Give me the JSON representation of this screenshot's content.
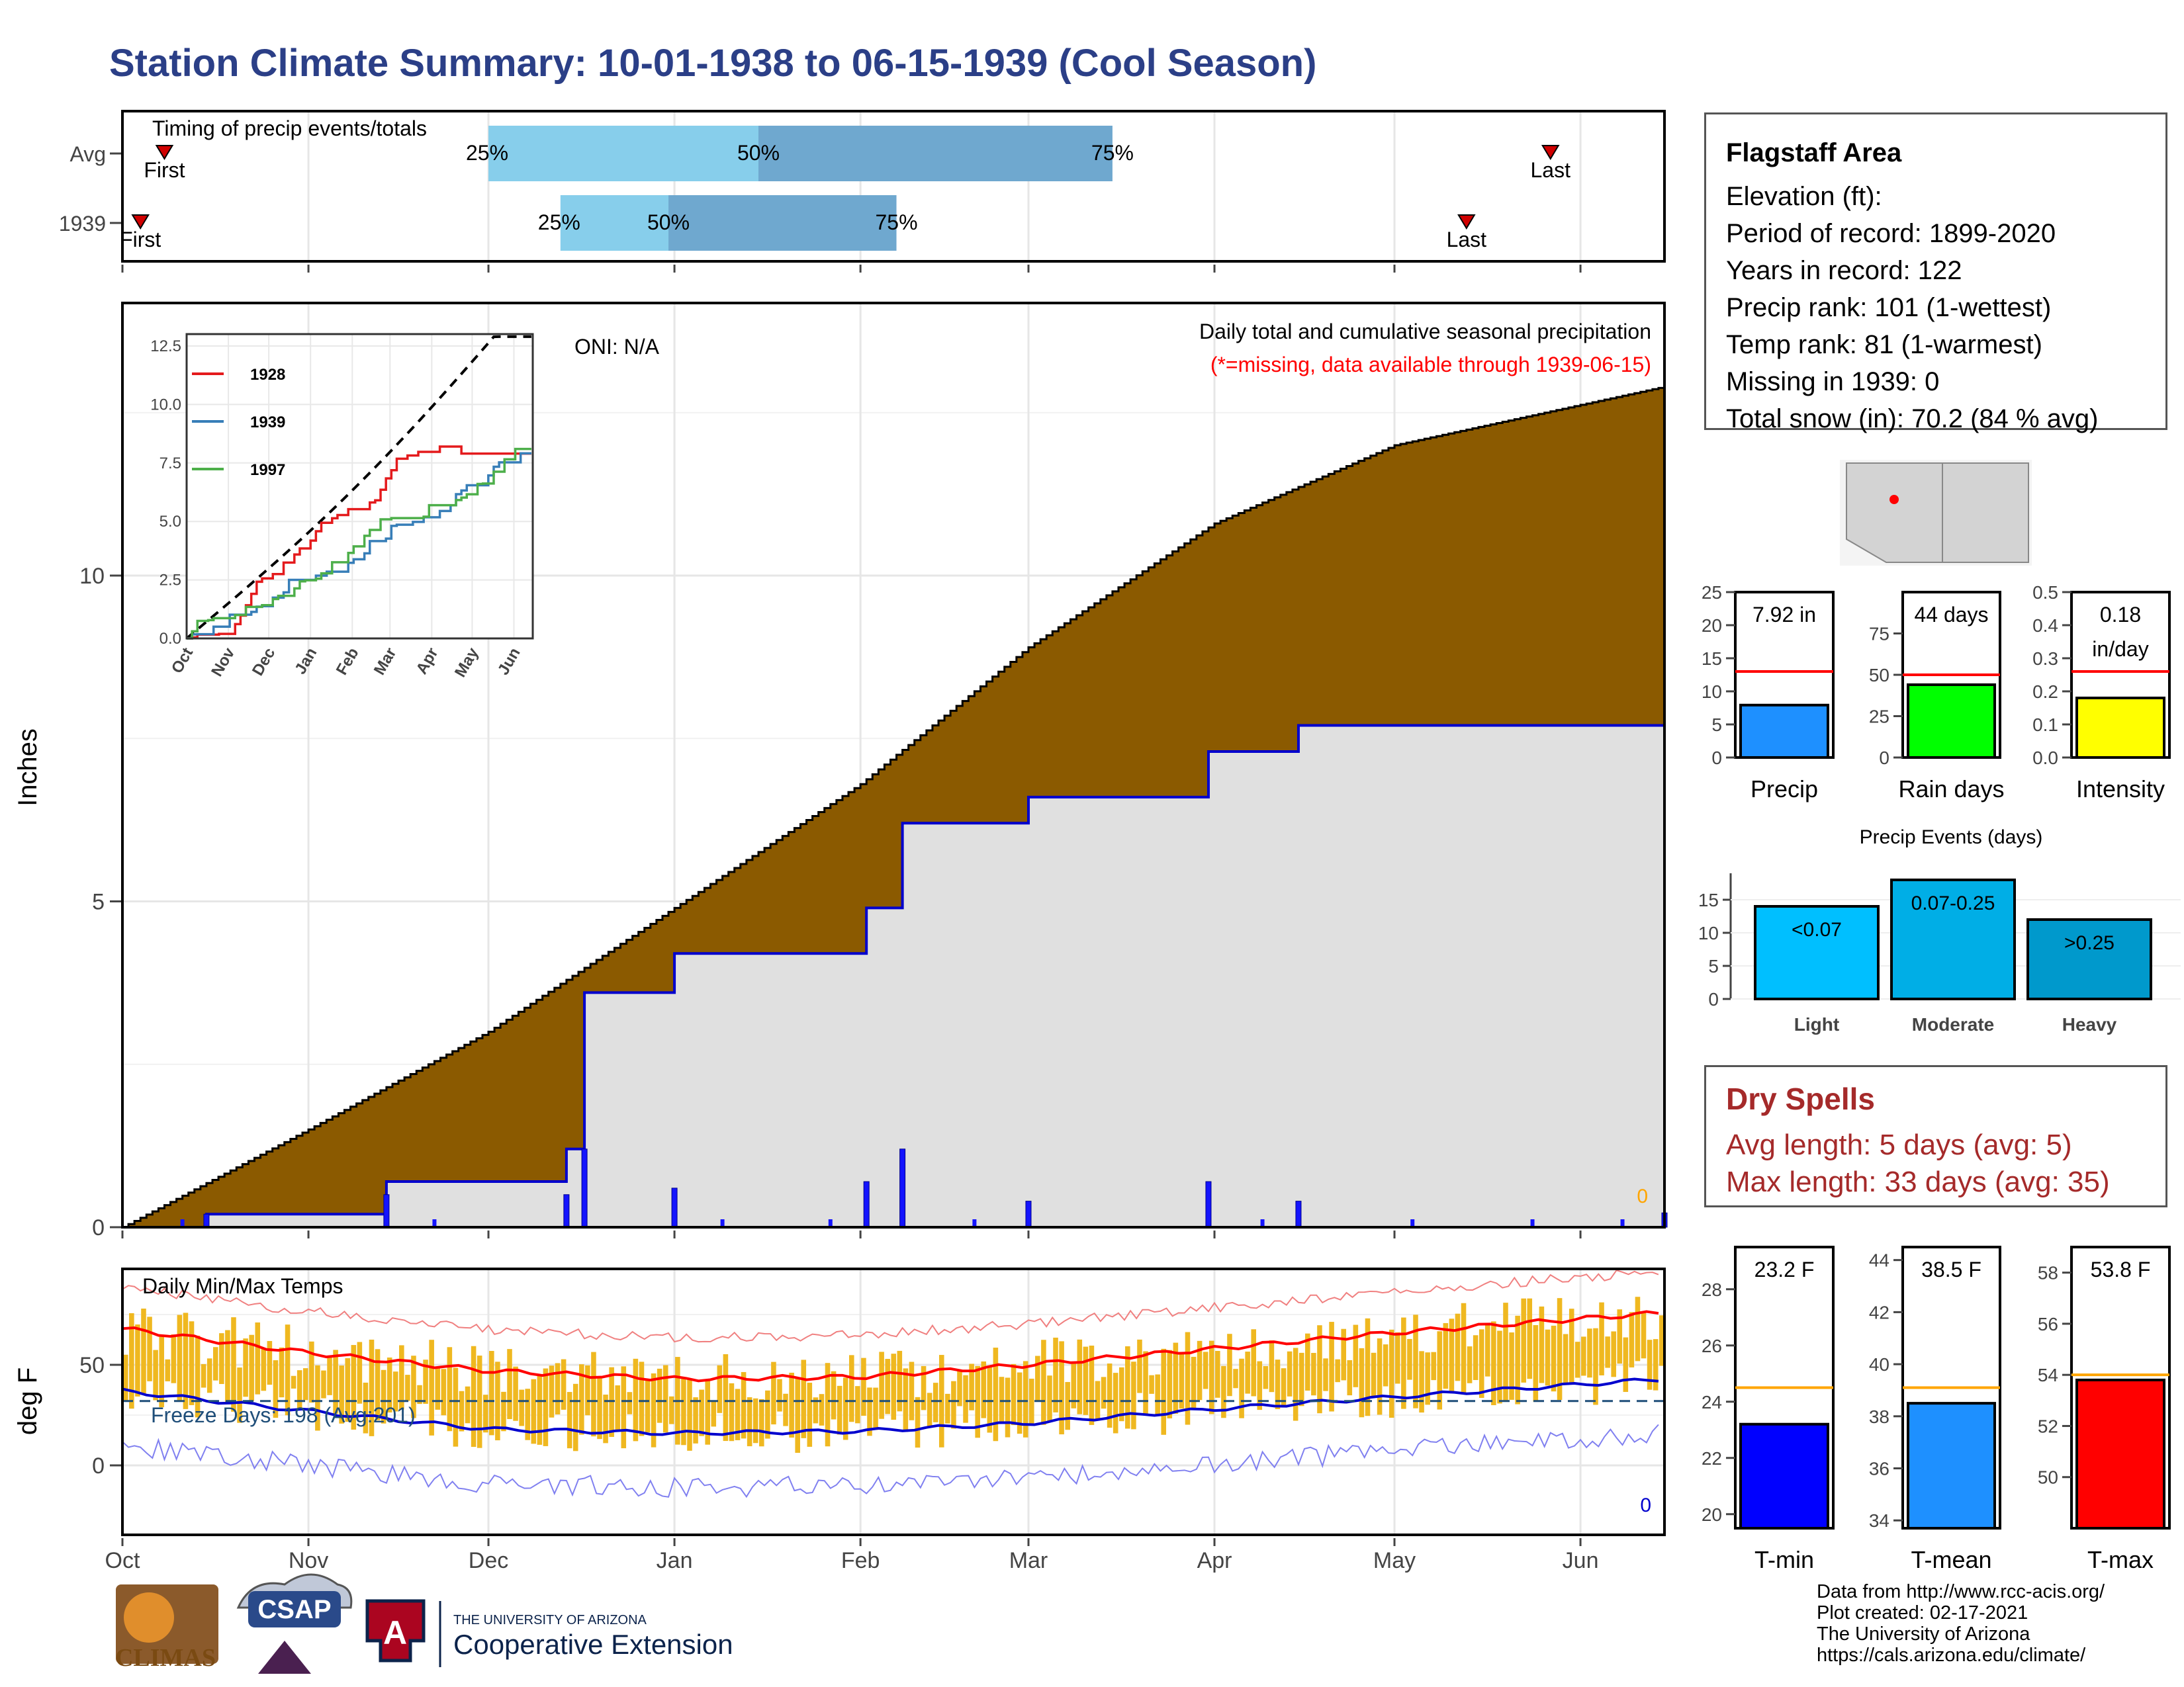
{
  "title": "Station Climate Summary: 10-01-1938 to 06-15-1939 (Cool Season)",
  "timing": {
    "label": "Timing of precip events/totals",
    "rows": [
      {
        "name": "Avg",
        "first": "2022-10-08",
        "p25": "2022-12-01",
        "p50": "2023-01-15",
        "p75": "2023-03-15",
        "last": "2023-05-27"
      },
      {
        "name": "1939",
        "first": "2022-10-04",
        "p25": "2022-12-13",
        "p50": "2022-12-31",
        "p75": "2023-02-07",
        "last": "2023-05-13"
      }
    ],
    "first_label": "First",
    "last_label": "Last",
    "p25_label": "25%",
    "p50_label": "50%",
    "p75_label": "75%"
  },
  "main_chart": {
    "title": "Daily total and cumulative seasonal precipitation",
    "note": "(*=missing, data available through 1939-06-15)",
    "oni": "ONI: N/A",
    "ylabel": "Inches",
    "yticks": [
      "0",
      "5",
      "10"
    ],
    "missing_count": "0"
  },
  "month_labels": [
    "Oct",
    "Nov",
    "Dec",
    "Jan",
    "Feb",
    "Mar",
    "Apr",
    "May",
    "Jun"
  ],
  "inset": {
    "yticks": [
      "0.0",
      "2.5",
      "5.0",
      "7.5",
      "10.0",
      "12.5"
    ],
    "xticks": [
      "Oct",
      "Nov",
      "Dec",
      "Jan",
      "Feb",
      "Mar",
      "Apr",
      "May",
      "Jun"
    ],
    "legend": [
      {
        "name": "1928",
        "color": "#e41a1c"
      },
      {
        "name": "1939",
        "color": "#377eb8"
      },
      {
        "name": "1997",
        "color": "#4daf4a"
      }
    ]
  },
  "temp_chart": {
    "title": "Daily Min/Max Temps",
    "freeze": "Freeze Days: 198 (Avg:201)",
    "ylabel": "deg F",
    "yticks": [
      "0",
      "50"
    ],
    "missing_count": "0"
  },
  "station": {
    "name": "Flagstaff Area",
    "lines": [
      "Elevation (ft):",
      "Period of record: 1899-2020",
      "Years in record: 122",
      "Precip rank: 101 (1-wettest)",
      "Temp rank: 81 (1-warmest)",
      "Missing in 1939: 0",
      "Total snow (in): 70.2 (84 % avg)"
    ]
  },
  "gauges": [
    {
      "label": "Precip",
      "value_text": "7.92 in",
      "value": 7.92,
      "avg": 13.0,
      "ymax": 25,
      "ticks": [
        0,
        5,
        10,
        15,
        20,
        25
      ],
      "color": "#1e90ff"
    },
    {
      "label": "Rain days",
      "value_text": "44 days",
      "value": 44,
      "avg": 50,
      "ymax": 100,
      "ticks": [
        0,
        25,
        50,
        75
      ],
      "color": "#00ff00"
    },
    {
      "label": "Intensity",
      "value_text": "0.18\nin/day",
      "value": 0.18,
      "avg": 0.26,
      "ymax": 0.5,
      "ticks": [
        0.0,
        0.1,
        0.2,
        0.3,
        0.4,
        0.5
      ],
      "color": "#ffff00"
    }
  ],
  "events": {
    "title": "Precip Events (days)",
    "ticks": [
      0,
      5,
      10,
      15
    ],
    "bars": [
      {
        "category": "Light",
        "label": "<0.07",
        "value": 14,
        "color": "#00bfff"
      },
      {
        "category": "Moderate",
        "label": "0.07-0.25",
        "value": 18,
        "color": "#00aee6"
      },
      {
        "category": "Heavy",
        "label": ">0.25",
        "value": 12,
        "color": "#0099cc"
      }
    ]
  },
  "dry_spells": {
    "title": "Dry Spells",
    "avg": "Avg length: 5 days (avg: 5)",
    "max": "Max length: 33 days (avg: 35)"
  },
  "temp_gauges": [
    {
      "label": "T-min",
      "value_text": "23.2 F",
      "value": 23.2,
      "avg": 24.5,
      "ymin": 19.5,
      "ymax": 29.5,
      "ticks": [
        20,
        22,
        24,
        26,
        28
      ],
      "color": "#0000ff"
    },
    {
      "label": "T-mean",
      "value_text": "38.5 F",
      "value": 38.5,
      "avg": 39.1,
      "ymin": 33.7,
      "ymax": 44.5,
      "ticks": [
        34,
        36,
        38,
        40,
        42,
        44
      ],
      "color": "#1e90ff"
    },
    {
      "label": "T-max",
      "value_text": "53.8 F",
      "value": 53.8,
      "avg": 54.0,
      "ymin": 48.0,
      "ymax": 59.0,
      "ticks": [
        50,
        52,
        54,
        56,
        58
      ],
      "color": "#ff0000"
    }
  ],
  "credits": [
    "Data from http://www.rcc-acis.org/",
    "Plot created: 02-17-2021",
    "The University of Arizona",
    "https://cals.arizona.edu/climate/"
  ],
  "logos": {
    "climas": "CLIMAS",
    "csap": "CSAP",
    "ua_line1": "THE UNIVERSITY OF ARIZONA",
    "ua_line2": "Cooperative Extension"
  },
  "chart_data": [
    {
      "type": "area",
      "title": "Daily total and cumulative seasonal precipitation",
      "ylabel": "Inches",
      "ylim": [
        0,
        12.9
      ],
      "series": [
        {
          "name": "Avg",
          "x": [
            "1938-10-01",
            "1938-11-01",
            "1938-12-01",
            "1939-01-01",
            "1939-02-01",
            "1939-03-01",
            "1939-04-01",
            "1939-05-01",
            "1939-06-15"
          ],
          "values": [
            0,
            1.5,
            3.0,
            4.9,
            6.8,
            8.9,
            10.8,
            12.0,
            12.9
          ]
        },
        {
          "name": "1939",
          "x": [
            "1938-10-01",
            "1938-10-15",
            "1938-11-14",
            "1938-12-14",
            "1938-12-17",
            "1939-01-01",
            "1939-02-02",
            "1939-02-08",
            "1939-03-01",
            "1939-03-31",
            "1939-04-15",
            "1939-06-15"
          ],
          "values": [
            0,
            0.2,
            0.7,
            1.2,
            3.6,
            4.2,
            4.9,
            6.2,
            6.6,
            7.3,
            7.7,
            7.92
          ]
        }
      ]
    },
    {
      "type": "line",
      "title": "Daily Min/Max Temps",
      "ylabel": "deg F",
      "ylim": [
        -35,
        95
      ],
      "series": [
        {
          "name": "avg max",
          "x": [
            "1938-10-01",
            "1938-11-01",
            "1938-12-01",
            "1939-01-01",
            "1939-02-01",
            "1939-03-01",
            "1939-04-01",
            "1939-05-01",
            "1939-06-15"
          ],
          "values": [
            68,
            56,
            47,
            43,
            44,
            50,
            58,
            66,
            76
          ]
        },
        {
          "name": "avg min",
          "x": [
            "1938-10-01",
            "1938-11-01",
            "1938-12-01",
            "1939-01-01",
            "1939-02-01",
            "1939-03-01",
            "1939-04-01",
            "1939-05-01",
            "1939-06-15"
          ],
          "values": [
            37,
            27,
            18,
            16,
            17,
            21,
            28,
            34,
            43
          ]
        }
      ]
    },
    {
      "type": "bar",
      "title": "Precip Events (days)",
      "categories": [
        "Light",
        "Moderate",
        "Heavy"
      ],
      "values": [
        14,
        18,
        12
      ]
    }
  ]
}
